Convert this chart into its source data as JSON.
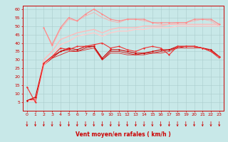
{
  "xlabel": "Vent moyen/en rafales ( km/h )",
  "xlim": [
    -0.5,
    23.5
  ],
  "ylim": [
    0,
    62
  ],
  "yticks": [
    5,
    10,
    15,
    20,
    25,
    30,
    35,
    40,
    45,
    50,
    55,
    60
  ],
  "xticks": [
    0,
    1,
    2,
    3,
    4,
    5,
    6,
    7,
    8,
    9,
    10,
    11,
    12,
    13,
    14,
    15,
    16,
    17,
    18,
    19,
    20,
    21,
    22,
    23
  ],
  "background_color": "#c8e8e8",
  "grid_color": "#aacccc",
  "series": [
    {
      "x": [
        0,
        1,
        2,
        3,
        4,
        5,
        6,
        7,
        8,
        9,
        10,
        11,
        12,
        13,
        14,
        15,
        16,
        17,
        18,
        19,
        20,
        21,
        22,
        23
      ],
      "y": [
        6,
        8,
        28,
        32,
        35,
        37,
        36,
        38,
        38,
        31,
        36,
        36,
        35,
        34,
        34,
        35,
        36,
        36,
        38,
        38,
        38,
        37,
        36,
        32
      ],
      "color": "#cc0000",
      "lw": 0.8,
      "marker": "D",
      "ms": 1.5
    },
    {
      "x": [
        0,
        1,
        2,
        3,
        4,
        5,
        6,
        7,
        8,
        9,
        10,
        11,
        12,
        13,
        14,
        15,
        16,
        17,
        18,
        19,
        20,
        21,
        22,
        23
      ],
      "y": [
        6,
        7,
        27,
        31,
        35,
        36,
        35,
        37,
        38,
        30,
        35,
        35,
        34,
        33,
        34,
        34,
        35,
        36,
        37,
        38,
        38,
        37,
        35,
        32
      ],
      "color": "#cc0000",
      "lw": 0.6,
      "marker": null,
      "ms": 0
    },
    {
      "x": [
        0,
        1,
        2,
        3,
        4,
        5,
        6,
        7,
        8,
        9,
        10,
        11,
        12,
        13,
        14,
        15,
        16,
        17,
        18,
        19,
        20,
        21,
        22,
        23
      ],
      "y": [
        6,
        7,
        27,
        31,
        33,
        35,
        35,
        36,
        37,
        30,
        34,
        34,
        33,
        33,
        33,
        34,
        34,
        35,
        37,
        37,
        37,
        37,
        35,
        31
      ],
      "color": "#dd2222",
      "lw": 0.6,
      "marker": null,
      "ms": 0
    },
    {
      "x": [
        0,
        1,
        2,
        3,
        4,
        5,
        6,
        7,
        8,
        9,
        10,
        11,
        12,
        13,
        14,
        15,
        16,
        17,
        18,
        19,
        20,
        21,
        22,
        23
      ],
      "y": [
        14,
        5,
        28,
        32,
        37,
        36,
        38,
        38,
        39,
        40,
        37,
        38,
        36,
        35,
        37,
        38,
        37,
        33,
        38,
        38,
        38,
        37,
        35,
        32
      ],
      "color": "#ee3333",
      "lw": 0.8,
      "marker": "D",
      "ms": 1.5
    },
    {
      "x": [
        2,
        3,
        4,
        5,
        6,
        7,
        8,
        9,
        10,
        11,
        12,
        13,
        14,
        15,
        16,
        17,
        18,
        19,
        20,
        21,
        22,
        23
      ],
      "y": [
        49,
        39,
        49,
        55,
        53,
        57,
        60,
        57,
        54,
        53,
        54,
        54,
        54,
        52,
        52,
        52,
        52,
        52,
        54,
        54,
        54,
        51
      ],
      "color": "#ff8888",
      "lw": 0.8,
      "marker": "D",
      "ms": 1.5
    },
    {
      "x": [
        2,
        3,
        4,
        5,
        6,
        7,
        8,
        9,
        10,
        11,
        12,
        13,
        14,
        15,
        16,
        17,
        18,
        19,
        20,
        21,
        22,
        23
      ],
      "y": [
        49,
        38,
        48,
        54,
        53,
        56,
        58,
        55,
        53,
        52,
        54,
        54,
        53,
        52,
        51,
        51,
        52,
        52,
        53,
        54,
        53,
        50
      ],
      "color": "#ffaaaa",
      "lw": 0.6,
      "marker": null,
      "ms": 0
    },
    {
      "x": [
        0,
        1,
        2,
        3,
        4,
        5,
        6,
        7,
        8,
        9,
        10,
        11,
        12,
        13,
        14,
        15,
        16,
        17,
        18,
        19,
        20,
        21,
        22,
        23
      ],
      "y": [
        6,
        6,
        30,
        35,
        42,
        44,
        46,
        47,
        48,
        46,
        48,
        49,
        49,
        49,
        50,
        50,
        50,
        51,
        51,
        51,
        51,
        51,
        51,
        51
      ],
      "color": "#ffbbbb",
      "lw": 1.0,
      "marker": null,
      "ms": 0
    },
    {
      "x": [
        0,
        1,
        2,
        3,
        4,
        5,
        6,
        7,
        8,
        9,
        10,
        11,
        12,
        13,
        14,
        15,
        16,
        17,
        18,
        19,
        20,
        21,
        22,
        23
      ],
      "y": [
        6,
        6,
        27,
        32,
        39,
        41,
        44,
        45,
        46,
        44,
        46,
        47,
        47,
        48,
        48,
        49,
        49,
        49,
        50,
        50,
        50,
        50,
        50,
        50
      ],
      "color": "#ffcccc",
      "lw": 1.0,
      "marker": null,
      "ms": 0
    }
  ],
  "arrow_color": "#cc0000",
  "xlabel_fontsize": 5.5,
  "tick_fontsize": 4.5
}
